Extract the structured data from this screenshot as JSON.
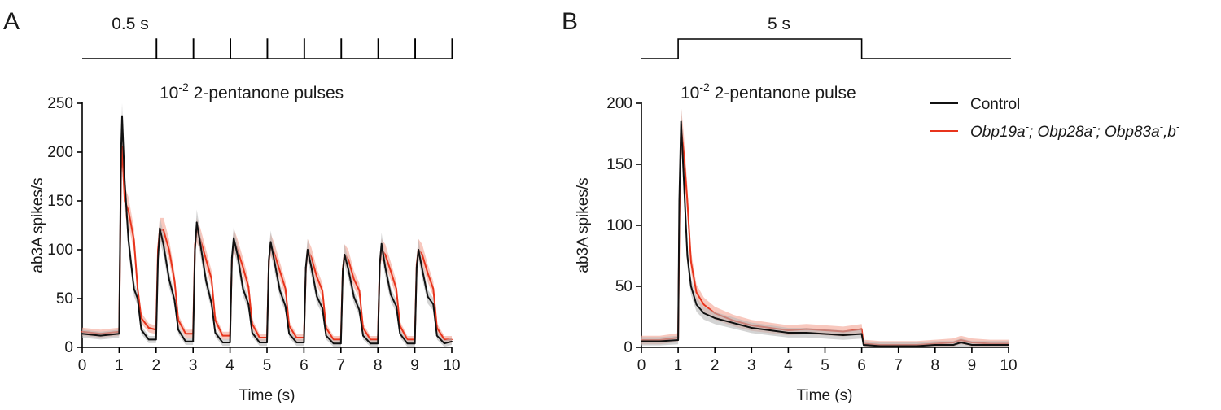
{
  "figure": {
    "panel_letters": [
      "A",
      "B"
    ],
    "legend": {
      "control_label": "Control",
      "mutant_parts": [
        "Obp19a",
        "-",
        "; Obp28a",
        "-",
        "; Obp83a",
        "-",
        ",b",
        "-"
      ]
    },
    "colors": {
      "control": "#111111",
      "mutant": "#e8341c",
      "mutant_band": "#f4a493",
      "control_band": "#b8b8b8"
    }
  },
  "chart_data": [
    {
      "type": "line",
      "panel": "A",
      "stimulus_label": "0.5 s",
      "stimulus_pulses": [
        [
          1,
          1.5
        ],
        [
          1.5,
          2
        ],
        [
          2,
          2.5
        ],
        [
          2.5,
          3
        ],
        [
          3,
          3.5
        ],
        [
          3.5,
          4
        ],
        [
          4,
          4.5
        ],
        [
          4.5,
          5
        ],
        [
          5,
          5.5
        ],
        [
          5.5,
          6
        ],
        [
          6,
          6.5
        ],
        [
          6.5,
          7
        ],
        [
          7,
          7.5
        ],
        [
          7.5,
          8
        ],
        [
          8,
          8.5
        ],
        [
          8.5,
          9
        ],
        [
          9,
          9.5
        ],
        [
          9.5,
          10
        ]
      ],
      "annotation": {
        "base": "10",
        "exp": "-2",
        "text": " 2-pentanone pulses"
      },
      "xlabel": "Time (s)",
      "ylabel": "ab3A spikes/s",
      "xlim": [
        0,
        10
      ],
      "ylim": [
        0,
        250
      ],
      "xticks": [
        0,
        1,
        2,
        3,
        4,
        5,
        6,
        7,
        8,
        9,
        10
      ],
      "yticks": [
        0,
        50,
        100,
        150,
        200,
        250
      ],
      "series": [
        {
          "name": "Control",
          "x": [
            0,
            0.5,
            1.0,
            1.05,
            1.08,
            1.15,
            1.25,
            1.4,
            1.5,
            1.6,
            1.8,
            2.0,
            2.05,
            2.1,
            2.2,
            2.35,
            2.5,
            2.6,
            2.8,
            3.0,
            3.05,
            3.1,
            3.2,
            3.35,
            3.5,
            3.6,
            3.8,
            4.0,
            4.05,
            4.1,
            4.2,
            4.35,
            4.5,
            4.6,
            4.8,
            5.0,
            5.05,
            5.1,
            5.2,
            5.35,
            5.5,
            5.6,
            5.8,
            6.0,
            6.05,
            6.1,
            6.2,
            6.35,
            6.5,
            6.6,
            6.8,
            7.0,
            7.05,
            7.1,
            7.2,
            7.35,
            7.5,
            7.6,
            7.8,
            8.0,
            8.05,
            8.1,
            8.2,
            8.35,
            8.5,
            8.6,
            8.8,
            9.0,
            9.05,
            9.1,
            9.2,
            9.35,
            9.5,
            9.6,
            9.8,
            10.0
          ],
          "values": [
            14,
            12,
            14,
            200,
            237,
            170,
            110,
            60,
            50,
            18,
            8,
            8,
            90,
            122,
            105,
            70,
            48,
            18,
            6,
            6,
            100,
            128,
            105,
            68,
            45,
            15,
            5,
            5,
            92,
            112,
            95,
            60,
            44,
            15,
            5,
            5,
            90,
            108,
            88,
            58,
            42,
            14,
            5,
            5,
            82,
            100,
            82,
            52,
            40,
            12,
            4,
            4,
            78,
            95,
            80,
            52,
            38,
            12,
            4,
            4,
            85,
            106,
            82,
            54,
            42,
            14,
            4,
            4,
            82,
            100,
            80,
            52,
            44,
            12,
            4,
            6
          ]
        },
        {
          "name": "Obp19a-; Obp28a-; Obp83a-,b-",
          "x": [
            0,
            0.5,
            1.0,
            1.05,
            1.08,
            1.15,
            1.25,
            1.4,
            1.5,
            1.6,
            1.8,
            2.0,
            2.05,
            2.1,
            2.2,
            2.35,
            2.5,
            2.6,
            2.8,
            3.0,
            3.05,
            3.1,
            3.2,
            3.35,
            3.5,
            3.6,
            3.8,
            4.0,
            4.05,
            4.1,
            4.2,
            4.35,
            4.5,
            4.6,
            4.8,
            5.0,
            5.05,
            5.1,
            5.2,
            5.35,
            5.5,
            5.6,
            5.8,
            6.0,
            6.05,
            6.1,
            6.2,
            6.35,
            6.5,
            6.6,
            6.8,
            7.0,
            7.05,
            7.1,
            7.2,
            7.35,
            7.5,
            7.6,
            7.8,
            8.0,
            8.05,
            8.1,
            8.2,
            8.35,
            8.5,
            8.6,
            8.8,
            9.0,
            9.05,
            9.1,
            9.2,
            9.35,
            9.5,
            9.6,
            9.8,
            10.0
          ],
          "values": [
            16,
            14,
            16,
            180,
            205,
            150,
            140,
            110,
            60,
            30,
            20,
            18,
            100,
            120,
            120,
            100,
            68,
            28,
            14,
            14,
            105,
            120,
            110,
            90,
            70,
            28,
            12,
            12,
            90,
            110,
            100,
            82,
            62,
            24,
            10,
            10,
            88,
            105,
            96,
            78,
            60,
            22,
            10,
            10,
            80,
            100,
            92,
            72,
            58,
            20,
            8,
            8,
            80,
            95,
            90,
            70,
            58,
            20,
            8,
            8,
            85,
            100,
            95,
            78,
            60,
            22,
            8,
            8,
            85,
            100,
            95,
            76,
            60,
            20,
            8,
            8
          ]
        }
      ]
    },
    {
      "type": "line",
      "panel": "B",
      "stimulus_label": "5 s",
      "stimulus_pulses": [
        [
          1,
          6
        ]
      ],
      "annotation": {
        "base": "10",
        "exp": "-2",
        "text": " 2-pentanone pulse"
      },
      "xlabel": "Time (s)",
      "ylabel": "ab3A  spikes/s",
      "xlim": [
        0,
        10
      ],
      "ylim": [
        0,
        200
      ],
      "xticks": [
        0,
        1,
        2,
        3,
        4,
        5,
        6,
        7,
        8,
        9,
        10
      ],
      "yticks": [
        0,
        50,
        100,
        150,
        200
      ],
      "series": [
        {
          "name": "Control",
          "x": [
            0,
            0.5,
            1.0,
            1.03,
            1.08,
            1.15,
            1.25,
            1.35,
            1.5,
            1.7,
            2.0,
            2.5,
            3.0,
            3.5,
            4.0,
            4.5,
            5.0,
            5.5,
            6.0,
            6.05,
            6.5,
            7.0,
            7.5,
            8.0,
            8.5,
            8.7,
            9.0,
            9.5,
            10.0
          ],
          "values": [
            5,
            5,
            6,
            120,
            185,
            140,
            75,
            50,
            35,
            28,
            24,
            20,
            16,
            14,
            12,
            12,
            11,
            10,
            11,
            2,
            1,
            1,
            1,
            2,
            2,
            4,
            2,
            2,
            2
          ]
        },
        {
          "name": "Obp19a-; Obp28a-; Obp83a-,b-",
          "x": [
            0,
            0.5,
            1.0,
            1.03,
            1.08,
            1.15,
            1.25,
            1.35,
            1.5,
            1.7,
            2.0,
            2.5,
            3.0,
            3.5,
            4.0,
            4.5,
            5.0,
            5.5,
            6.0,
            6.05,
            6.5,
            7.0,
            7.5,
            8.0,
            8.5,
            8.7,
            9.0,
            9.5,
            10.0
          ],
          "values": [
            6,
            6,
            8,
            100,
            180,
            160,
            120,
            70,
            45,
            35,
            28,
            22,
            18,
            16,
            14,
            15,
            14,
            13,
            15,
            3,
            2,
            2,
            2,
            3,
            4,
            6,
            4,
            3,
            3
          ]
        }
      ]
    }
  ]
}
